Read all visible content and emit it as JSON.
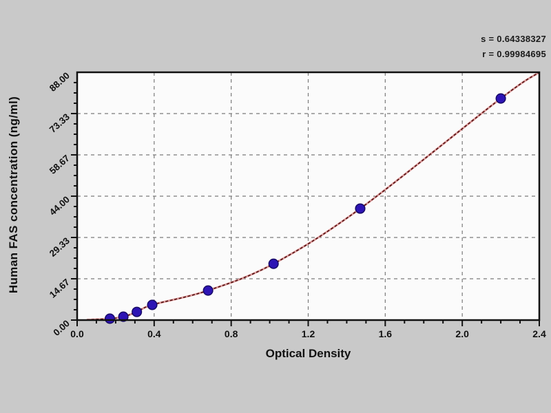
{
  "stats": {
    "s_line": "s = 0.64338327",
    "r_line": "r = 0.99984695"
  },
  "chart_data": {
    "type": "scatter",
    "title": "",
    "xlabel": "Optical Density",
    "ylabel": "Human FAS  concentration (ng/ml)",
    "xlim": [
      0,
      2.4
    ],
    "ylim": [
      0,
      88
    ],
    "grid": "dashed, on major ticks",
    "legend": "none",
    "x_major_ticks": {
      "values": [
        0,
        0.4,
        0.8,
        1.2,
        1.6,
        2.0,
        2.4
      ],
      "labels": [
        "0.0",
        "0.4",
        "0.8",
        "1.2",
        "1.6",
        "2.0",
        "2.4"
      ]
    },
    "x_minor_step": 0.1,
    "y_major_ticks": {
      "values": [
        0,
        14.667,
        29.333,
        44,
        58.667,
        73.333,
        88
      ],
      "labels": [
        "0.00",
        "14.67",
        "29.33",
        "44.00",
        "58.67",
        "73.33",
        "88.00"
      ]
    },
    "y_minor_step": 3.667,
    "points": [
      [
        0.17,
        0.5
      ],
      [
        0.24,
        1.2
      ],
      [
        0.31,
        2.9
      ],
      [
        0.39,
        5.4
      ],
      [
        0.68,
        10.5
      ],
      [
        1.02,
        20.0
      ],
      [
        1.47,
        39.6
      ],
      [
        2.2,
        78.7
      ]
    ],
    "curve_start": [
      0.05,
      0.1
    ],
    "curve_end": [
      2.4,
      88
    ],
    "annotations": [
      "s = 0.64338327",
      "r = 0.99984695"
    ],
    "colors": {
      "background": "#c9c9c9",
      "plot_background": "#fbfbfb",
      "axis": "#111111",
      "grid": "#7a7a7a",
      "curve": "#571414",
      "curve_halo": "#dfa0a0",
      "point_fill": "#2d14b4",
      "point_stroke": "#170a66",
      "text": "#111111"
    }
  }
}
